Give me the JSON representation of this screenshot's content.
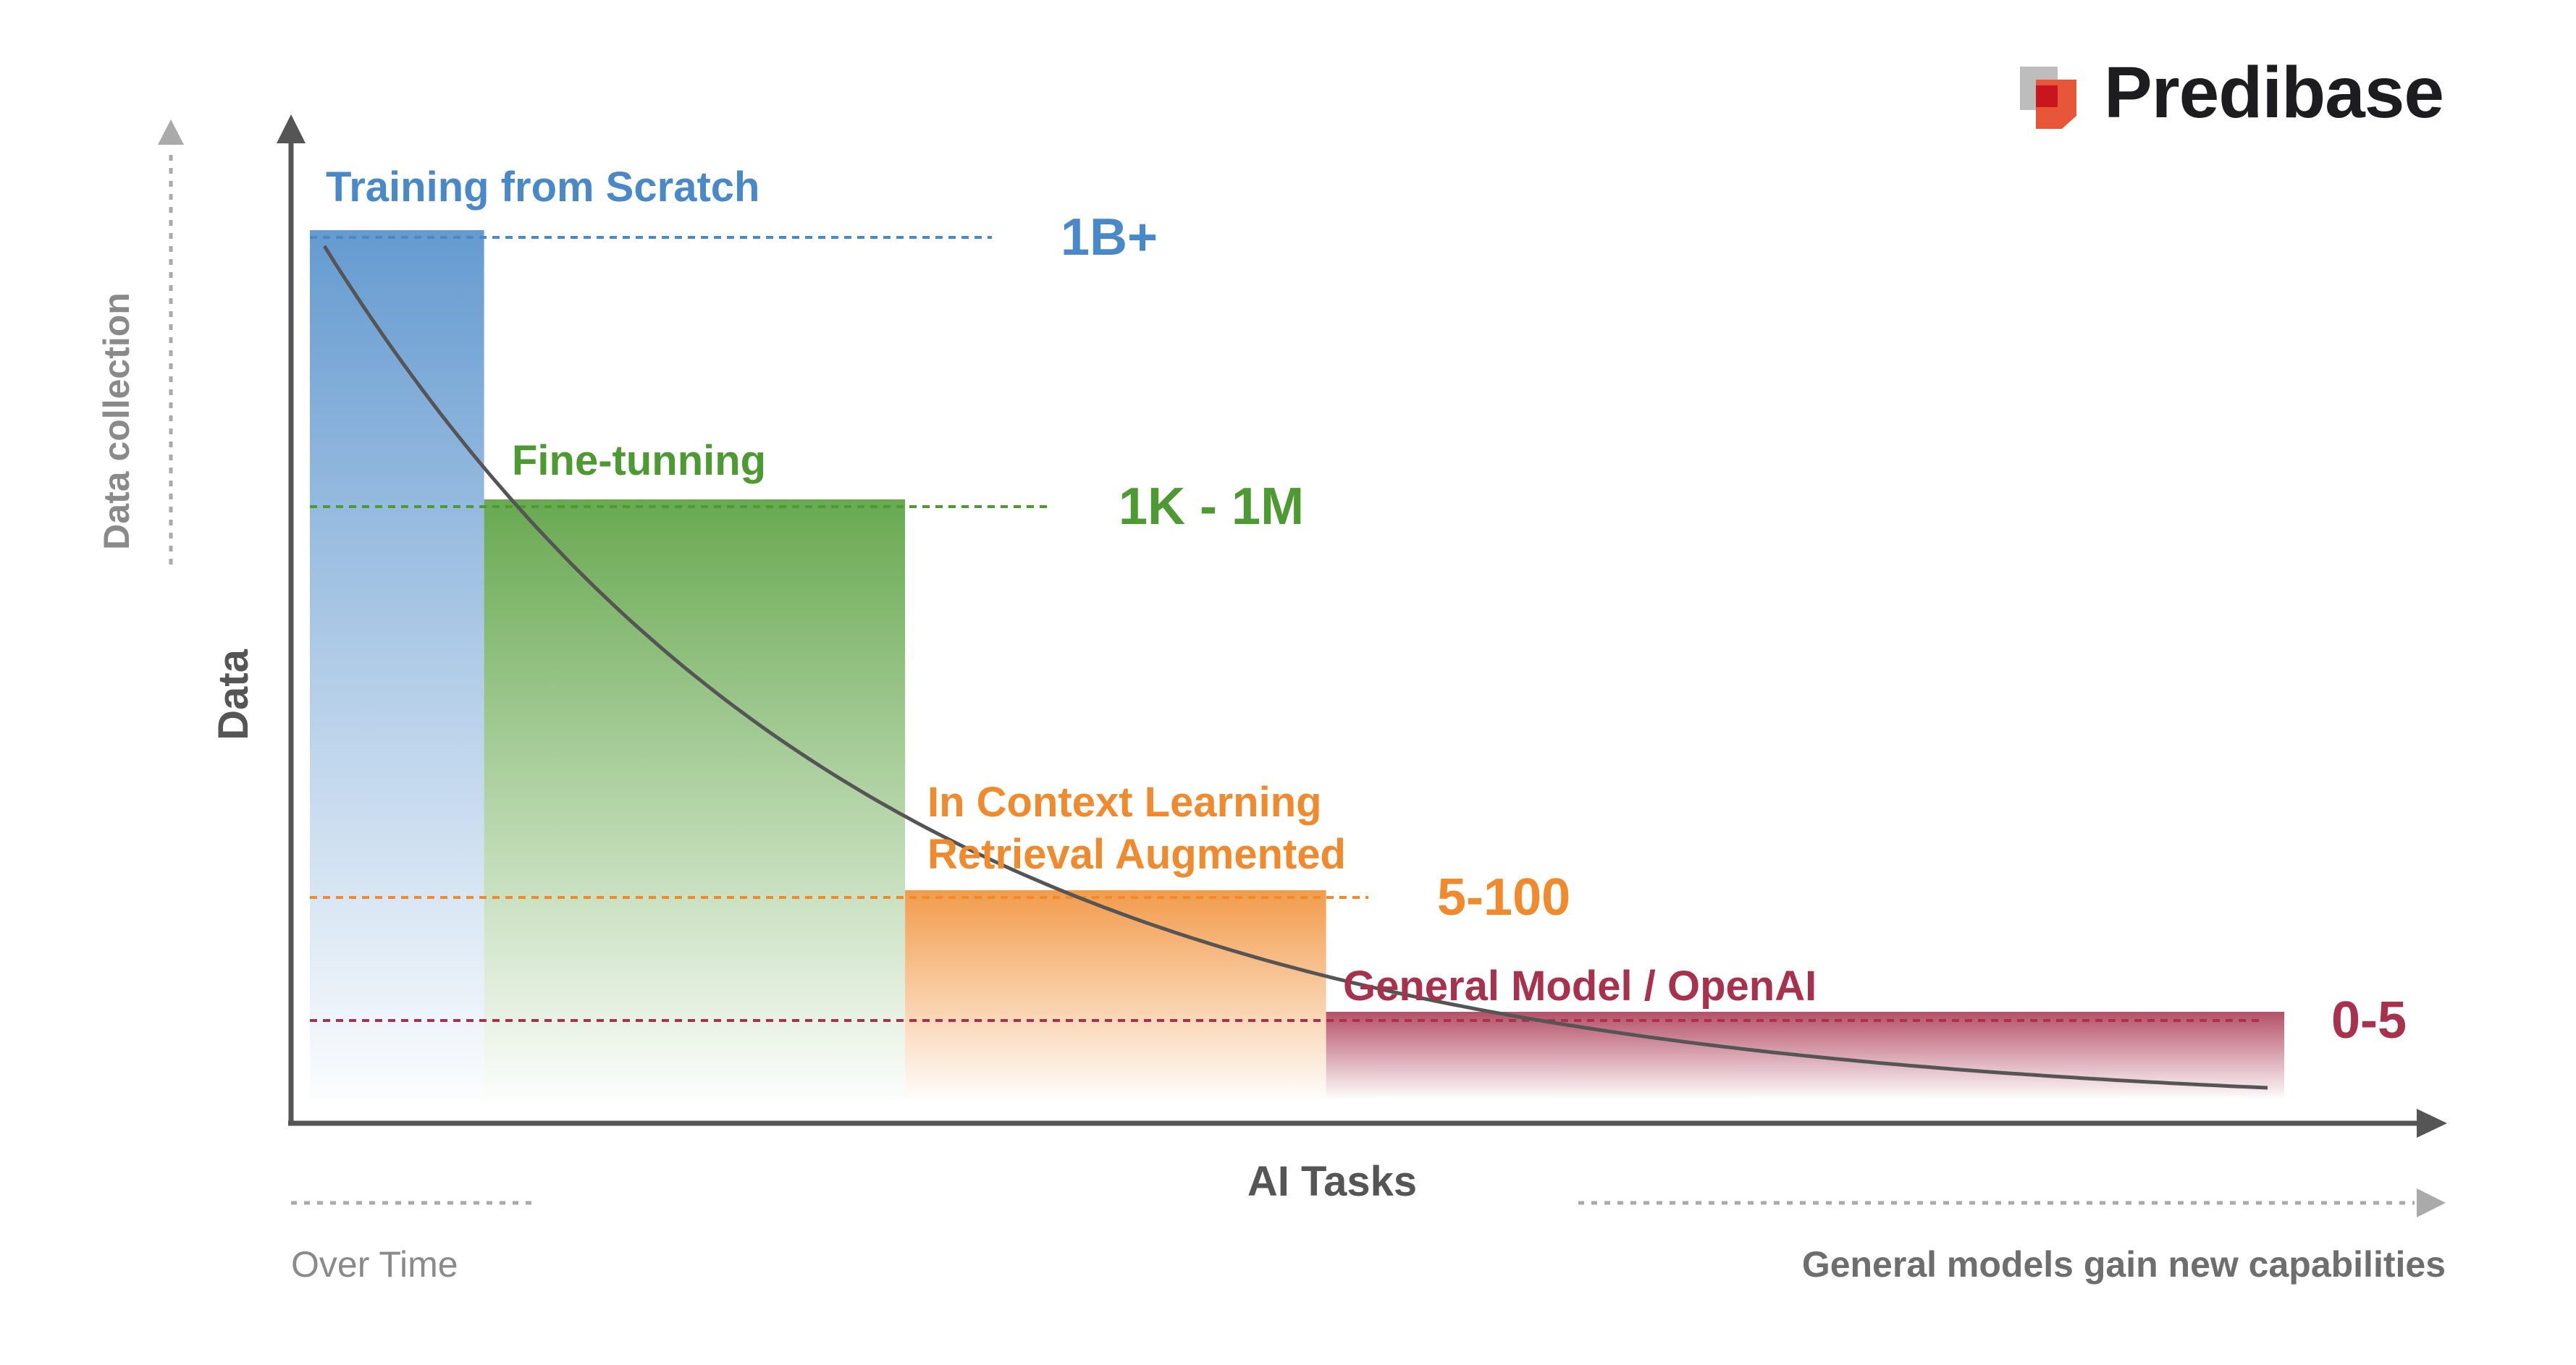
{
  "brand": {
    "name": "Predibase",
    "logo_icon": "predibase-logo-icon",
    "colors": {
      "logo_light": "#bdbdbd",
      "logo_mid": "#e8563a",
      "logo_dark": "#c8151e",
      "text": "#1d1d1f"
    }
  },
  "chart_data": {
    "type": "bar",
    "title": "",
    "xlabel": "AI Tasks",
    "ylabel": "Data",
    "grid": false,
    "legend": "none",
    "categories": [
      "Training from Scratch",
      "Fine-tunning",
      "In Context Learning\nRetrieval Augmented",
      "General Model / OpenAI"
    ],
    "category_lines": [
      [
        "Training from Scratch"
      ],
      [
        "Fine-tunning"
      ],
      [
        "In Context Learning",
        "Retrieval Augmented"
      ],
      [
        "General Model / OpenAI"
      ]
    ],
    "value_labels": [
      "1B+",
      "1K - 1M",
      "5-100",
      "0-5"
    ],
    "colors": [
      "#4a89c8",
      "#4e9a32",
      "#f08a2c",
      "#a8314d"
    ],
    "relative_heights": [
      1.0,
      0.69,
      0.24,
      0.1
    ],
    "relative_widths": [
      0.12,
      0.29,
      0.29,
      0.66
    ],
    "curve": "decreasing-exponential"
  },
  "annotations": {
    "y_side_label": "Data collection",
    "x_left_label": "Over Time",
    "x_right_label": "General models gain new capabilities"
  }
}
